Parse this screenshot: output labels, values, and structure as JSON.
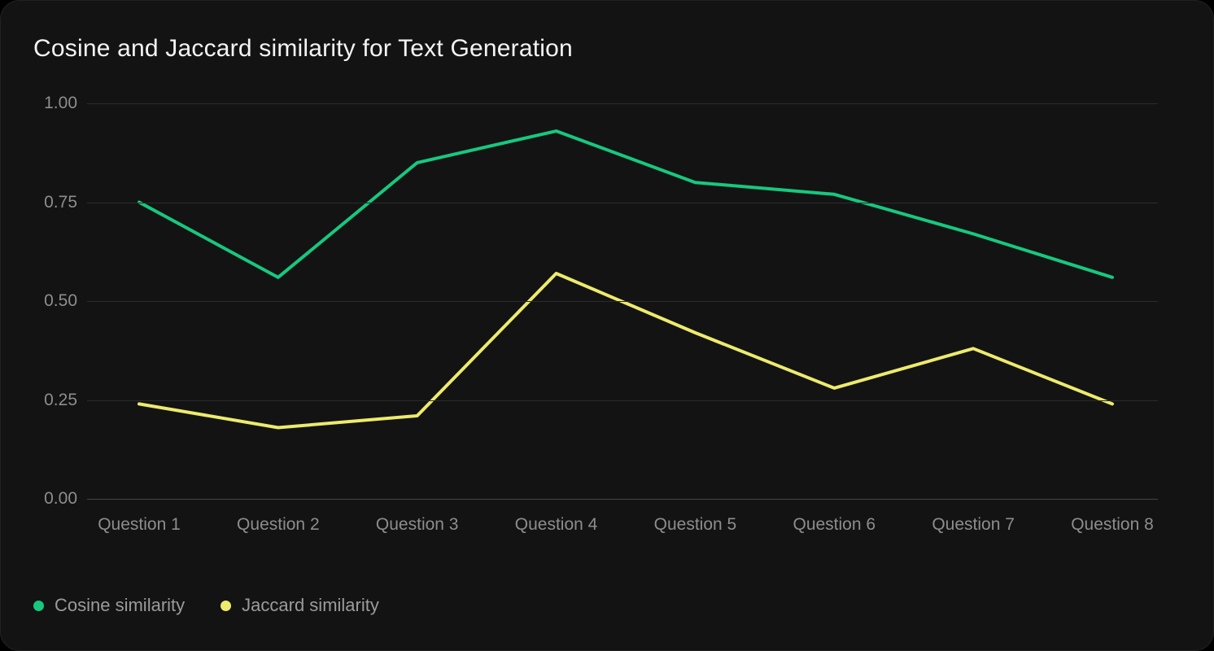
{
  "chart_data": {
    "type": "line",
    "title": "Cosine and Jaccard similarity for Text Generation",
    "categories": [
      "Question 1",
      "Question 2",
      "Question 3",
      "Question 4",
      "Question 5",
      "Question 6",
      "Question 7",
      "Question 8"
    ],
    "series": [
      {
        "name": "Cosine similarity",
        "color": "#17c87e",
        "values": [
          0.75,
          0.56,
          0.85,
          0.93,
          0.8,
          0.77,
          0.67,
          0.56
        ]
      },
      {
        "name": "Jaccard similarity",
        "color": "#edeb6c",
        "values": [
          0.24,
          0.18,
          0.21,
          0.57,
          0.42,
          0.28,
          0.38,
          0.24
        ]
      }
    ],
    "xlabel": "",
    "ylabel": "",
    "ylim": [
      0.0,
      1.0
    ],
    "yticks": [
      "1.00",
      "0.75",
      "0.50",
      "0.25",
      "0.00"
    ],
    "grid": "horizontal",
    "legend_position": "bottom-left"
  },
  "colors": {
    "page_background": "#000000",
    "card_background": "#131313",
    "gridline": "#2b2b2b",
    "axis_line": "#454545",
    "tick_text": "#8d8d8d",
    "title_text": "#f4f4f4",
    "legend_text": "#9b9b9b"
  }
}
